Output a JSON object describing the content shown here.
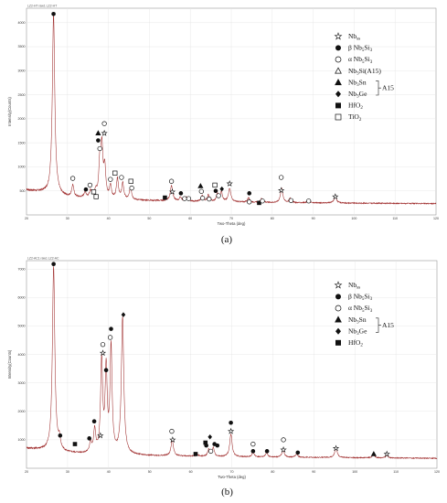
{
  "chart_data": [
    {
      "type": "line",
      "panel_label": "(a)",
      "header": "LZ2-HT raw1 LZ2-HT",
      "xlabel": "Two-Theta (deg)",
      "ylabel": "Intensity(Counts)",
      "xlim": [
        20,
        120
      ],
      "ylim": [
        0,
        4300
      ],
      "xticks": [
        20,
        30,
        40,
        50,
        60,
        70,
        80,
        90,
        100,
        110,
        120
      ],
      "yticks": [
        500,
        1000,
        1500,
        2000,
        2500,
        3000,
        3500,
        4000
      ],
      "grid": true,
      "line_color": "#9e2a2a",
      "baseline": [
        [
          20,
          520
        ],
        [
          24,
          470
        ],
        [
          30,
          370
        ],
        [
          40,
          320
        ],
        [
          50,
          300
        ],
        [
          60,
          280
        ],
        [
          70,
          270
        ],
        [
          80,
          255
        ],
        [
          90,
          250
        ],
        [
          100,
          245
        ],
        [
          110,
          240
        ],
        [
          120,
          235
        ]
      ],
      "peaks": [
        {
          "x": 26.6,
          "h": 3750,
          "w": 0.35
        },
        {
          "x": 31.3,
          "h": 250,
          "w": 0.3
        },
        {
          "x": 34.3,
          "h": 120,
          "w": 0.3
        },
        {
          "x": 35.6,
          "h": 140,
          "w": 0.3
        },
        {
          "x": 36.9,
          "h": 150,
          "w": 0.3
        },
        {
          "x": 37.9,
          "h": 700,
          "w": 0.3
        },
        {
          "x": 38.4,
          "h": 1000,
          "w": 0.3
        },
        {
          "x": 39.1,
          "h": 620,
          "w": 0.3
        },
        {
          "x": 40.5,
          "h": 260,
          "w": 0.3
        },
        {
          "x": 42.2,
          "h": 420,
          "w": 0.3
        },
        {
          "x": 43.5,
          "h": 330,
          "w": 0.3
        },
        {
          "x": 45.4,
          "h": 270,
          "w": 0.3
        },
        {
          "x": 55.4,
          "h": 320,
          "w": 0.35
        },
        {
          "x": 57.6,
          "h": 80,
          "w": 0.3
        },
        {
          "x": 59.1,
          "h": 90,
          "w": 0.3
        },
        {
          "x": 62.9,
          "h": 120,
          "w": 0.3
        },
        {
          "x": 64.4,
          "h": 140,
          "w": 0.3
        },
        {
          "x": 66.6,
          "h": 160,
          "w": 0.3
        },
        {
          "x": 67.6,
          "h": 200,
          "w": 0.3
        },
        {
          "x": 69.6,
          "h": 280,
          "w": 0.35
        },
        {
          "x": 74.2,
          "h": 90,
          "w": 0.3
        },
        {
          "x": 77.4,
          "h": 80,
          "w": 0.3
        },
        {
          "x": 82.3,
          "h": 300,
          "w": 0.35
        },
        {
          "x": 84.4,
          "h": 90,
          "w": 0.3
        },
        {
          "x": 88.9,
          "h": 60,
          "w": 0.3
        },
        {
          "x": 95.4,
          "h": 140,
          "w": 0.35
        }
      ],
      "markers": [
        {
          "x": 26.6,
          "y": 4180,
          "sym": "dot"
        },
        {
          "x": 31.3,
          "y": 760,
          "sym": "circle"
        },
        {
          "x": 34.5,
          "y": 530,
          "sym": "dot"
        },
        {
          "x": 35.5,
          "y": 620,
          "sym": "circle"
        },
        {
          "x": 36.4,
          "y": 480,
          "sym": "sq-open"
        },
        {
          "x": 37.0,
          "y": 380,
          "sym": "sq-open"
        },
        {
          "x": 37.5,
          "y": 1700,
          "sym": "tri"
        },
        {
          "x": 37.5,
          "y": 1550,
          "sym": "dot"
        },
        {
          "x": 37.9,
          "y": 1380,
          "sym": "circle"
        },
        {
          "x": 39.0,
          "y": 1700,
          "sym": "star"
        },
        {
          "x": 39.0,
          "y": 1900,
          "sym": "circle"
        },
        {
          "x": 40.5,
          "y": 740,
          "sym": "circle"
        },
        {
          "x": 41.6,
          "y": 870,
          "sym": "sq-open"
        },
        {
          "x": 43.2,
          "y": 780,
          "sym": "circle"
        },
        {
          "x": 45.5,
          "y": 700,
          "sym": "sq-open"
        },
        {
          "x": 45.7,
          "y": 560,
          "sym": "circle"
        },
        {
          "x": 53.8,
          "y": 360,
          "sym": "sq"
        },
        {
          "x": 55.4,
          "y": 700,
          "sym": "circle"
        },
        {
          "x": 55.6,
          "y": 480,
          "sym": "star"
        },
        {
          "x": 57.7,
          "y": 450,
          "sym": "dot"
        },
        {
          "x": 58.6,
          "y": 340,
          "sym": "circle"
        },
        {
          "x": 59.6,
          "y": 340,
          "sym": "circle"
        },
        {
          "x": 62.5,
          "y": 600,
          "sym": "tri"
        },
        {
          "x": 62.7,
          "y": 490,
          "sym": "circle"
        },
        {
          "x": 63.0,
          "y": 350,
          "sym": "circle"
        },
        {
          "x": 64.6,
          "y": 330,
          "sym": "circle"
        },
        {
          "x": 66.0,
          "y": 620,
          "sym": "sq-open"
        },
        {
          "x": 66.2,
          "y": 500,
          "sym": "dot"
        },
        {
          "x": 66.9,
          "y": 400,
          "sym": "circle"
        },
        {
          "x": 67.7,
          "y": 540,
          "sym": "dia"
        },
        {
          "x": 69.6,
          "y": 650,
          "sym": "star"
        },
        {
          "x": 74.4,
          "y": 450,
          "sym": "dot"
        },
        {
          "x": 74.4,
          "y": 270,
          "sym": "circle"
        },
        {
          "x": 76.8,
          "y": 250,
          "sym": "sq"
        },
        {
          "x": 77.6,
          "y": 290,
          "sym": "circle"
        },
        {
          "x": 82.2,
          "y": 780,
          "sym": "circle"
        },
        {
          "x": 82.2,
          "y": 510,
          "sym": "star"
        },
        {
          "x": 84.6,
          "y": 300,
          "sym": "circle"
        },
        {
          "x": 88.9,
          "y": 290,
          "sym": "circle"
        },
        {
          "x": 95.4,
          "y": 380,
          "sym": "star"
        }
      ],
      "legend": [
        {
          "sym": "star",
          "prefix": "Nb",
          "sub": "ss",
          "suffix": "",
          "group": false
        },
        {
          "sym": "dot",
          "prefix": "β Nb",
          "sub": "5",
          "suffix": "Si",
          "sub2": "3",
          "group": false
        },
        {
          "sym": "circle",
          "prefix": "α Nb",
          "sub": "5",
          "suffix": "Si",
          "sub2": "3",
          "group": false
        },
        {
          "sym": "tri-open",
          "prefix": "Nb",
          "sub": "3",
          "suffix": "Si(A15)",
          "group": false
        },
        {
          "sym": "tri",
          "prefix": "Nb",
          "sub": "3",
          "suffix": "Sn",
          "group": true
        },
        {
          "sym": "dia",
          "prefix": "Nb",
          "sub": "3",
          "suffix": "Ge",
          "group": true
        },
        {
          "sym": "sq",
          "prefix": "HfO",
          "sub": "2",
          "suffix": "",
          "group": false
        },
        {
          "sym": "sq-open",
          "prefix": "TiO",
          "sub": "2",
          "suffix": "",
          "group": false
        }
      ],
      "legend_group_label": "A15"
    },
    {
      "type": "line",
      "panel_label": "(b)",
      "header": "LZ2-AC1 raw1 LZ2-AC",
      "xlabel": "Two-Theta (deg)",
      "ylabel": "Intensity(Counts)",
      "xlim": [
        20,
        120
      ],
      "ylim": [
        0,
        7300
      ],
      "xticks": [
        20,
        30,
        40,
        50,
        60,
        70,
        80,
        90,
        100,
        110,
        120
      ],
      "yticks": [
        1000,
        2000,
        3000,
        4000,
        5000,
        6000,
        7000
      ],
      "grid": true,
      "line_color": "#9e2a2a",
      "baseline": [
        [
          20,
          700
        ],
        [
          25,
          620
        ],
        [
          30,
          530
        ],
        [
          40,
          480
        ],
        [
          50,
          440
        ],
        [
          60,
          420
        ],
        [
          70,
          400
        ],
        [
          80,
          390
        ],
        [
          90,
          380
        ],
        [
          100,
          370
        ],
        [
          110,
          360
        ],
        [
          120,
          350
        ]
      ],
      "peaks": [
        {
          "x": 26.6,
          "h": 6500,
          "w": 0.35
        },
        {
          "x": 28.0,
          "h": 350,
          "w": 0.3
        },
        {
          "x": 35.6,
          "h": 350,
          "w": 0.3
        },
        {
          "x": 36.6,
          "h": 800,
          "w": 0.3
        },
        {
          "x": 38.3,
          "h": 3200,
          "w": 0.3
        },
        {
          "x": 39.4,
          "h": 2900,
          "w": 0.3
        },
        {
          "x": 40.6,
          "h": 3700,
          "w": 0.3
        },
        {
          "x": 43.4,
          "h": 4800,
          "w": 0.35
        },
        {
          "x": 55.5,
          "h": 550,
          "w": 0.35
        },
        {
          "x": 61.6,
          "h": 60,
          "w": 0.3
        },
        {
          "x": 64.4,
          "h": 250,
          "w": 0.3
        },
        {
          "x": 65.5,
          "h": 300,
          "w": 0.3
        },
        {
          "x": 69.8,
          "h": 800,
          "w": 0.35
        },
        {
          "x": 75.2,
          "h": 180,
          "w": 0.3
        },
        {
          "x": 78.5,
          "h": 150,
          "w": 0.3
        },
        {
          "x": 82.5,
          "h": 250,
          "w": 0.35
        },
        {
          "x": 85.8,
          "h": 120,
          "w": 0.3
        },
        {
          "x": 95.4,
          "h": 350,
          "w": 0.35
        },
        {
          "x": 104.5,
          "h": 120,
          "w": 0.3
        },
        {
          "x": 107.8,
          "h": 100,
          "w": 0.3
        }
      ],
      "markers": [
        {
          "x": 26.6,
          "y": 7180,
          "sym": "dot"
        },
        {
          "x": 28.2,
          "y": 1150,
          "sym": "dot"
        },
        {
          "x": 31.8,
          "y": 850,
          "sym": "sq"
        },
        {
          "x": 35.3,
          "y": 1050,
          "sym": "dot"
        },
        {
          "x": 36.5,
          "y": 1650,
          "sym": "dot"
        },
        {
          "x": 38.0,
          "y": 1150,
          "sym": "star"
        },
        {
          "x": 38.6,
          "y": 4050,
          "sym": "star"
        },
        {
          "x": 38.6,
          "y": 4350,
          "sym": "circle"
        },
        {
          "x": 39.4,
          "y": 3450,
          "sym": "dot"
        },
        {
          "x": 40.4,
          "y": 4600,
          "sym": "circle"
        },
        {
          "x": 40.6,
          "y": 4900,
          "sym": "dot"
        },
        {
          "x": 43.6,
          "y": 5400,
          "sym": "dia"
        },
        {
          "x": 55.4,
          "y": 1300,
          "sym": "circle"
        },
        {
          "x": 55.6,
          "y": 1000,
          "sym": "star"
        },
        {
          "x": 61.2,
          "y": 500,
          "sym": "sq"
        },
        {
          "x": 63.8,
          "y": 800,
          "sym": "dot"
        },
        {
          "x": 63.6,
          "y": 900,
          "sym": "sq"
        },
        {
          "x": 64.7,
          "y": 1100,
          "sym": "dia"
        },
        {
          "x": 64.9,
          "y": 600,
          "sym": "circle"
        },
        {
          "x": 65.8,
          "y": 850,
          "sym": "dot"
        },
        {
          "x": 66.5,
          "y": 800,
          "sym": "dot"
        },
        {
          "x": 69.8,
          "y": 1600,
          "sym": "dot"
        },
        {
          "x": 69.8,
          "y": 1300,
          "sym": "star"
        },
        {
          "x": 75.2,
          "y": 850,
          "sym": "circle"
        },
        {
          "x": 75.2,
          "y": 600,
          "sym": "dot"
        },
        {
          "x": 78.6,
          "y": 600,
          "sym": "dot"
        },
        {
          "x": 82.6,
          "y": 1000,
          "sym": "circle"
        },
        {
          "x": 82.6,
          "y": 650,
          "sym": "star"
        },
        {
          "x": 86.1,
          "y": 550,
          "sym": "dot"
        },
        {
          "x": 95.4,
          "y": 700,
          "sym": "star"
        },
        {
          "x": 104.6,
          "y": 500,
          "sym": "tri"
        },
        {
          "x": 107.8,
          "y": 500,
          "sym": "star"
        }
      ],
      "legend": [
        {
          "sym": "star",
          "prefix": "Nb",
          "sub": "ss",
          "suffix": "",
          "group": false
        },
        {
          "sym": "dot",
          "prefix": "β Nb",
          "sub": "5",
          "suffix": "Si",
          "sub2": "3",
          "group": false
        },
        {
          "sym": "circle",
          "prefix": "α Nb",
          "sub": "5",
          "suffix": "Si",
          "sub2": "3",
          "group": false
        },
        {
          "sym": "tri",
          "prefix": "Nb",
          "sub": "3",
          "suffix": "Sn",
          "group": true
        },
        {
          "sym": "dia",
          "prefix": "Nb",
          "sub": "3",
          "suffix": "Ge",
          "group": true
        },
        {
          "sym": "sq",
          "prefix": "HfO",
          "sub": "2",
          "suffix": "",
          "group": false
        }
      ],
      "legend_group_label": "A15"
    }
  ]
}
